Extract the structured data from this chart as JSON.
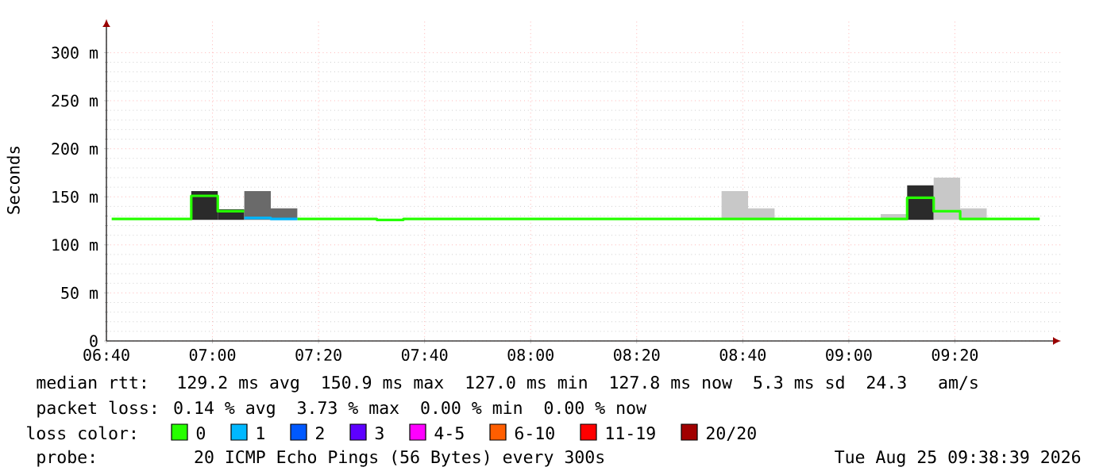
{
  "chart_data": {
    "type": "step",
    "xlim": [
      6.6667,
      9.6667
    ],
    "xticks": [
      {
        "value": 6.6667,
        "label": "06:40"
      },
      {
        "value": 7,
        "label": "07:00"
      },
      {
        "value": 7.3333,
        "label": "07:20"
      },
      {
        "value": 7.6667,
        "label": "07:40"
      },
      {
        "value": 8,
        "label": "08:00"
      },
      {
        "value": 8.3333,
        "label": "08:20"
      },
      {
        "value": 8.6667,
        "label": "08:40"
      },
      {
        "value": 9,
        "label": "09:00"
      },
      {
        "value": 9.3333,
        "label": "09:20"
      }
    ],
    "ylim": [
      0,
      335
    ],
    "yticks": [
      0,
      {
        "value": 50,
        "label": "50 m"
      },
      {
        "value": 100,
        "label": "100 m"
      },
      {
        "value": 150,
        "label": "150 m"
      },
      {
        "value": 200,
        "label": "200 m"
      },
      {
        "value": 250,
        "label": "250 m"
      },
      {
        "value": 300,
        "label": "300 m"
      }
    ],
    "ylabel": "Seconds",
    "grid": true,
    "legend": "bottom",
    "legend_title": "loss color:",
    "x": [
      6.6833,
      6.7667,
      6.85,
      6.9333,
      7.0167,
      7.1,
      7.1833,
      7.2667,
      7.35,
      7.4333,
      7.5167,
      7.6,
      7.6833,
      7.7667,
      7.85,
      7.9333,
      8.0167,
      8.1,
      8.1833,
      8.2667,
      8.35,
      8.4333,
      8.5167,
      8.6,
      8.6833,
      8.7667,
      8.85,
      8.9333,
      9.0167,
      9.1,
      9.1833,
      9.2667,
      9.35,
      9.4333,
      9.5167,
      9.6
    ],
    "series": [
      {
        "type": "bar",
        "color": "#8a8a8a",
        "x": [
          6.975,
          7.0583,
          7.1417,
          7.225,
          8.6417,
          8.725,
          9.1417,
          9.225,
          9.3083,
          9.3917
        ],
        "base": [
          126,
          126,
          126,
          126,
          126,
          126,
          126,
          126,
          126,
          126
        ],
        "values": [
          30,
          11,
          30,
          12,
          30,
          12,
          6,
          36,
          44,
          12
        ],
        "colors": [
          "#2b2b2b",
          "#2b2b2b",
          "#6a6a6a",
          "#6a6a6a",
          "#c8c8c8",
          "#c8c8c8",
          "#c8c8c8",
          "#2b2b2b",
          "#c8c8c8",
          "#c8c8c8"
        ]
      },
      {
        "name": "0",
        "color": "#26ff00",
        "values": [
          127,
          127,
          127,
          151,
          135,
          null,
          null,
          127,
          127,
          127,
          126,
          127,
          127,
          127,
          127,
          127,
          127,
          127,
          127,
          127,
          127,
          127,
          127,
          127,
          127,
          127,
          127,
          127,
          127,
          127,
          149,
          135,
          127,
          127,
          127,
          127
        ]
      },
      {
        "name": "1",
        "color": "#00b8ff",
        "x": [
          7.1,
          7.1833,
          7.2667
        ],
        "values": [
          128,
          127,
          127
        ]
      },
      {
        "name": "2",
        "color": "#0059ff",
        "values": [
          null,
          null,
          null,
          null,
          null,
          null,
          null,
          null,
          null,
          null,
          null,
          null,
          null,
          null,
          null,
          null,
          null,
          null,
          null,
          null,
          null,
          null,
          null,
          null,
          null,
          null,
          null,
          null,
          null,
          null,
          null,
          null,
          null,
          null,
          null,
          null
        ]
      },
      {
        "name": "3",
        "color": "#5e00ff",
        "values": [
          null,
          null,
          null,
          null,
          null,
          null,
          null,
          null,
          null,
          null,
          null,
          null,
          null,
          null,
          null,
          null,
          null,
          null,
          null,
          null,
          null,
          null,
          null,
          null,
          null,
          null,
          null,
          null,
          null,
          null,
          null,
          null,
          null,
          null,
          null,
          null
        ]
      },
      {
        "name": "4-5",
        "color": "#ff00ff",
        "values": [
          null,
          null,
          null,
          null,
          null,
          null,
          null,
          null,
          null,
          null,
          null,
          null,
          null,
          null,
          null,
          null,
          null,
          null,
          null,
          null,
          null,
          null,
          null,
          null,
          null,
          null,
          null,
          null,
          null,
          null,
          null,
          null,
          null,
          null,
          null,
          null
        ]
      },
      {
        "name": "6-10",
        "color": "#ff5e00",
        "values": [
          null,
          null,
          null,
          null,
          null,
          null,
          null,
          null,
          null,
          null,
          null,
          null,
          null,
          null,
          null,
          null,
          null,
          null,
          null,
          null,
          null,
          null,
          null,
          null,
          null,
          null,
          null,
          null,
          null,
          null,
          null,
          null,
          null,
          null,
          null,
          null
        ]
      },
      {
        "name": "11-19",
        "color": "#ff0000",
        "values": [
          null,
          null,
          null,
          null,
          null,
          null,
          null,
          null,
          null,
          null,
          null,
          null,
          null,
          null,
          null,
          null,
          null,
          null,
          null,
          null,
          null,
          null,
          null,
          null,
          null,
          null,
          null,
          null,
          null,
          null,
          null,
          null,
          null,
          null,
          null,
          null
        ]
      },
      {
        "name": "20/20",
        "color": "#a10000",
        "values": [
          null,
          null,
          null,
          null,
          null,
          null,
          null,
          null,
          null,
          null,
          null,
          null,
          null,
          null,
          null,
          null,
          null,
          null,
          null,
          null,
          null,
          null,
          null,
          null,
          null,
          null,
          null,
          null,
          null,
          null,
          null,
          null,
          null,
          null,
          null,
          null
        ]
      }
    ],
    "annotations": [
      "median rtt:  129.2 ms avg  150.9 ms max  127.0 ms min  127.8 ms now  5.3 ms sd  24.3   am/s",
      "packet loss: 0.14 % avg  3.73 % max  0.00 % min  0.00 % now",
      "probe:       20 ICMP Echo Pings (56 Bytes) every 300s",
      "Tue Aug 25 09:38:39 2026"
    ]
  }
}
